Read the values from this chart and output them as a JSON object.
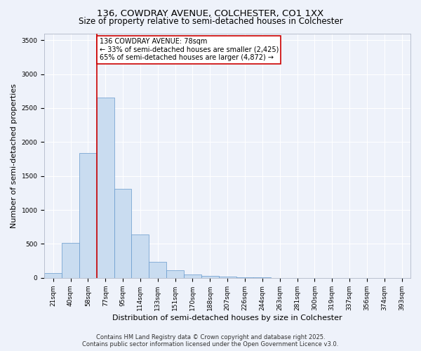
{
  "title_line1": "136, COWDRAY AVENUE, COLCHESTER, CO1 1XX",
  "title_line2": "Size of property relative to semi-detached houses in Colchester",
  "xlabel": "Distribution of semi-detached houses by size in Colchester",
  "ylabel": "Number of semi-detached properties",
  "categories": [
    "21sqm",
    "40sqm",
    "58sqm",
    "77sqm",
    "95sqm",
    "114sqm",
    "133sqm",
    "151sqm",
    "170sqm",
    "188sqm",
    "207sqm",
    "226sqm",
    "244sqm",
    "263sqm",
    "281sqm",
    "300sqm",
    "319sqm",
    "337sqm",
    "356sqm",
    "374sqm",
    "393sqm"
  ],
  "values": [
    75,
    520,
    1840,
    2650,
    1310,
    640,
    235,
    110,
    55,
    30,
    20,
    10,
    5,
    3,
    2,
    2,
    1,
    1,
    1,
    1,
    1
  ],
  "bar_color": "#c9dcf0",
  "bar_edge_color": "#6699cc",
  "red_line_x": 2.5,
  "red_line_color": "#cc0000",
  "annotation_text": "136 COWDRAY AVENUE: 78sqm\n← 33% of semi-detached houses are smaller (2,425)\n65% of semi-detached houses are larger (4,872) →",
  "annotation_box_color": "white",
  "annotation_box_edge": "#cc0000",
  "ylim": [
    0,
    3600
  ],
  "yticks": [
    0,
    500,
    1000,
    1500,
    2000,
    2500,
    3000,
    3500
  ],
  "background_color": "#eef2fa",
  "grid_color": "white",
  "footer_line1": "Contains HM Land Registry data © Crown copyright and database right 2025.",
  "footer_line2": "Contains public sector information licensed under the Open Government Licence v3.0.",
  "title_fontsize": 9.5,
  "subtitle_fontsize": 8.5,
  "axis_label_fontsize": 8,
  "tick_fontsize": 6.5,
  "annotation_fontsize": 7,
  "footer_fontsize": 6
}
